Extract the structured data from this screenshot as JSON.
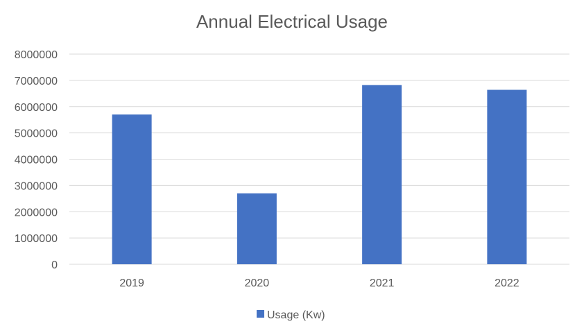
{
  "chart_data": {
    "type": "bar",
    "title": "Annual Electrical Usage",
    "categories": [
      "2019",
      "2020",
      "2021",
      "2022"
    ],
    "series": [
      {
        "name": "Usage (Kw)",
        "values": [
          5700000,
          2700000,
          6820000,
          6640000
        ],
        "color": "#4472C4"
      }
    ],
    "xlabel": "",
    "ylabel": "",
    "ylim": [
      0,
      8000000
    ],
    "yticks": [
      "0",
      "1000000",
      "2000000",
      "3000000",
      "4000000",
      "5000000",
      "6000000",
      "7000000",
      "8000000"
    ],
    "grid": true,
    "legend_position": "bottom"
  }
}
